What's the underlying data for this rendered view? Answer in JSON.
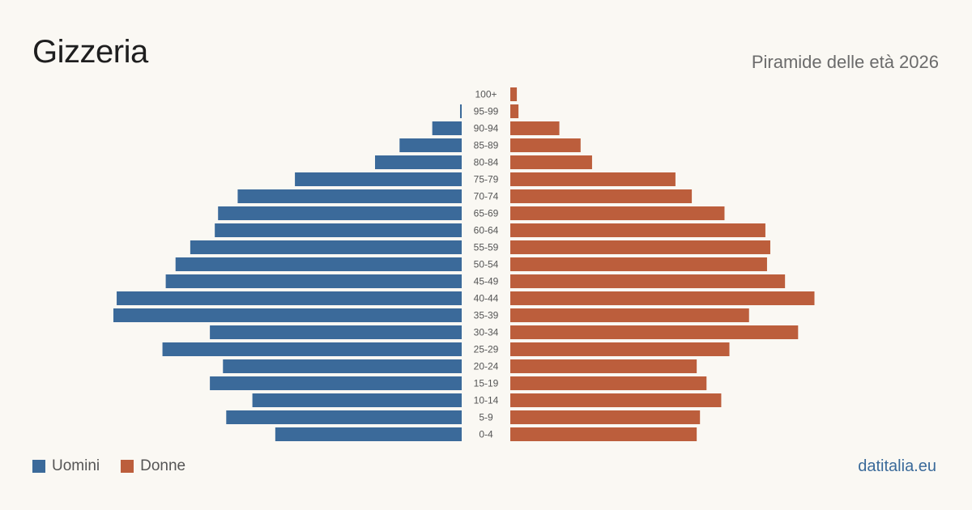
{
  "header": {
    "title": "Gizzeria",
    "subtitle": "Piramide delle età 2026"
  },
  "footer": {
    "brand": "datitalia.eu"
  },
  "colors": {
    "men": "#3b6a9a",
    "women": "#bc5e3c"
  },
  "chart_data": {
    "type": "bar",
    "orientation": "horizontal-pyramid",
    "categories": [
      "100+",
      "95-99",
      "90-94",
      "85-89",
      "80-84",
      "75-79",
      "70-74",
      "65-69",
      "60-64",
      "55-59",
      "50-54",
      "45-49",
      "40-44",
      "35-39",
      "30-34",
      "25-29",
      "20-24",
      "15-19",
      "10-14",
      "5-9",
      "0-4"
    ],
    "series": [
      {
        "name": "Uomini",
        "side": "left",
        "values": [
          0,
          1,
          18,
          38,
          53,
          102,
          137,
          149,
          151,
          166,
          175,
          181,
          211,
          213,
          154,
          183,
          146,
          154,
          128,
          144,
          114
        ]
      },
      {
        "name": "Donne",
        "side": "right",
        "values": [
          4,
          5,
          30,
          43,
          50,
          101,
          111,
          131,
          156,
          159,
          157,
          168,
          186,
          146,
          176,
          134,
          114,
          120,
          129,
          116,
          114
        ]
      }
    ],
    "legend": "bottom-left",
    "grid": false
  }
}
